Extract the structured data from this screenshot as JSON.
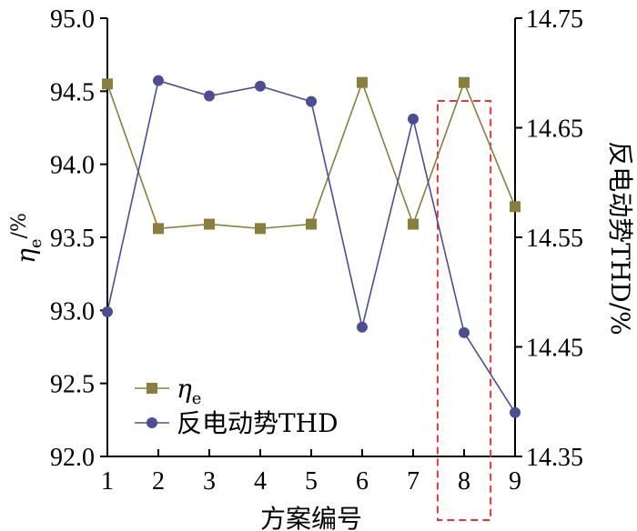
{
  "chart_data": {
    "type": "line",
    "x_title": "方案编号",
    "y_left_title_symbol": "η",
    "y_left_title_sub": "e",
    "y_left_title_unit": "/%",
    "y_right_title": "反电动势THD/%",
    "x_ticks": [
      "1",
      "2",
      "3",
      "4",
      "5",
      "6",
      "7",
      "8",
      "9"
    ],
    "y_left_ticks": [
      "92.0",
      "92.5",
      "93.0",
      "93.5",
      "94.0",
      "94.5",
      "95.0"
    ],
    "y_right_ticks": [
      "14.35",
      "14.45",
      "14.55",
      "14.65",
      "14.75"
    ],
    "x_range": [
      1,
      9
    ],
    "y_left_range": [
      92.0,
      95.0
    ],
    "y_right_range": [
      14.35,
      14.75
    ],
    "x": [
      1,
      2,
      3,
      4,
      5,
      6,
      7,
      8,
      9
    ],
    "series": [
      {
        "name": "η_e",
        "legend_symbol": "η",
        "legend_sub": "e",
        "axis": "left",
        "marker": "square",
        "color": "#8B7D3A",
        "values": [
          94.55,
          93.56,
          93.59,
          93.56,
          93.59,
          94.56,
          93.59,
          94.56,
          93.71
        ]
      },
      {
        "name": "反电动势THD",
        "legend_label": "反电动势THD",
        "axis": "right",
        "marker": "circle",
        "color": "#4B4E96",
        "values": [
          14.482,
          14.693,
          14.679,
          14.688,
          14.674,
          14.468,
          14.658,
          14.463,
          14.39
        ]
      }
    ],
    "highlight": {
      "x": 8,
      "style": "dashed-box",
      "color": "#E53935"
    },
    "legend_position": "bottom-left"
  }
}
